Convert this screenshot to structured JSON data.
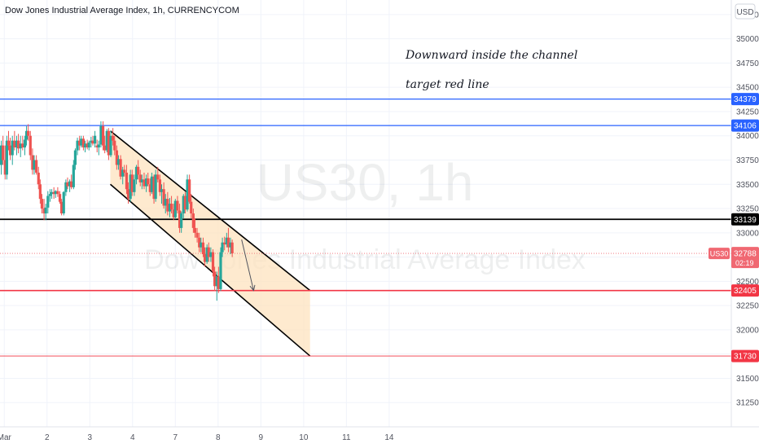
{
  "header": {
    "title": "Dow Jones Industrial Average Index, 1h, CURRENCYCOM",
    "currency": "USD"
  },
  "watermark": {
    "symbol": "US30, 1h",
    "name": "Dow Jones Industrial Average Index"
  },
  "annotations": {
    "line1": "Downward inside the channel",
    "line2": "target red line"
  },
  "colors": {
    "up": "#26a69a",
    "down": "#ef5350",
    "blue_line": "#2962ff",
    "black_line": "#000000",
    "red_line": "#f23645",
    "channel_fill": "#fde3bf",
    "last_price": "#f06872"
  },
  "chart_data": {
    "type": "candlestick",
    "title": "Dow Jones Industrial Average Index, 1h, CURRENCYCOM",
    "symbol": "US30",
    "interval": "1h",
    "y_axis": {
      "ylim": [
        31000,
        35400
      ],
      "ticks": [
        31250,
        31500,
        31750,
        32000,
        32250,
        32500,
        32750,
        33000,
        33250,
        33500,
        33750,
        34000,
        34250,
        34500,
        34750,
        35000,
        35250
      ]
    },
    "x_axis": {
      "xlim": [
        -0.1,
        17.0
      ],
      "ticks": [
        {
          "label": "Mar",
          "x": 0
        },
        {
          "label": "2",
          "x": 1
        },
        {
          "label": "3",
          "x": 2
        },
        {
          "label": "4",
          "x": 3
        },
        {
          "label": "7",
          "x": 4
        },
        {
          "label": "8",
          "x": 5
        },
        {
          "label": "9",
          "x": 6
        },
        {
          "label": "10",
          "x": 7
        },
        {
          "label": "11",
          "x": 8
        },
        {
          "label": "14",
          "x": 9
        }
      ]
    },
    "candles": [
      {
        "x": -0.07,
        "o": 33700,
        "h": 33950,
        "l": 33600,
        "c": 33900
      },
      {
        "x": -0.03,
        "o": 33900,
        "h": 34000,
        "l": 33700,
        "c": 33750
      },
      {
        "x": 0.02,
        "o": 33750,
        "h": 33900,
        "l": 33550,
        "c": 33600
      },
      {
        "x": 0.06,
        "o": 33600,
        "h": 34000,
        "l": 33550,
        "c": 33950
      },
      {
        "x": 0.1,
        "o": 33950,
        "h": 34050,
        "l": 33850,
        "c": 33900
      },
      {
        "x": 0.14,
        "o": 33900,
        "h": 33980,
        "l": 33750,
        "c": 33800
      },
      {
        "x": 0.19,
        "o": 33800,
        "h": 34000,
        "l": 33700,
        "c": 33950
      },
      {
        "x": 0.24,
        "o": 33950,
        "h": 34050,
        "l": 33850,
        "c": 33880
      },
      {
        "x": 0.29,
        "o": 33880,
        "h": 34000,
        "l": 33800,
        "c": 33950
      },
      {
        "x": 0.33,
        "o": 33950,
        "h": 34020,
        "l": 33820,
        "c": 33870
      },
      {
        "x": 0.38,
        "o": 33870,
        "h": 34000,
        "l": 33780,
        "c": 33920
      },
      {
        "x": 0.43,
        "o": 33920,
        "h": 34000,
        "l": 33850,
        "c": 33880
      },
      {
        "x": 0.48,
        "o": 33880,
        "h": 34000,
        "l": 33800,
        "c": 33960
      },
      {
        "x": 0.52,
        "o": 33960,
        "h": 34100,
        "l": 33900,
        "c": 34050
      },
      {
        "x": 0.56,
        "o": 34050,
        "h": 34120,
        "l": 33950,
        "c": 34000
      },
      {
        "x": 0.61,
        "o": 34000,
        "h": 34050,
        "l": 33750,
        "c": 33800
      },
      {
        "x": 0.66,
        "o": 33800,
        "h": 33870,
        "l": 33600,
        "c": 33650
      },
      {
        "x": 0.7,
        "o": 33650,
        "h": 33800,
        "l": 33600,
        "c": 33750
      },
      {
        "x": 0.75,
        "o": 33750,
        "h": 33800,
        "l": 33600,
        "c": 33620
      },
      {
        "x": 0.8,
        "o": 33620,
        "h": 33680,
        "l": 33450,
        "c": 33500
      },
      {
        "x": 0.84,
        "o": 33500,
        "h": 33550,
        "l": 33300,
        "c": 33350
      },
      {
        "x": 0.88,
        "o": 33350,
        "h": 33400,
        "l": 33200,
        "c": 33250
      },
      {
        "x": 0.93,
        "o": 33250,
        "h": 33350,
        "l": 33130,
        "c": 33200
      },
      {
        "x": 0.97,
        "o": 33200,
        "h": 33300,
        "l": 33130,
        "c": 33260
      },
      {
        "x": 1.02,
        "o": 33260,
        "h": 33430,
        "l": 33200,
        "c": 33380
      },
      {
        "x": 1.07,
        "o": 33380,
        "h": 33450,
        "l": 33320,
        "c": 33400
      },
      {
        "x": 1.11,
        "o": 33400,
        "h": 33450,
        "l": 33350,
        "c": 33420
      },
      {
        "x": 1.16,
        "o": 33420,
        "h": 33470,
        "l": 33350,
        "c": 33400
      },
      {
        "x": 1.2,
        "o": 33400,
        "h": 33440,
        "l": 33360,
        "c": 33430
      },
      {
        "x": 1.25,
        "o": 33430,
        "h": 33470,
        "l": 33370,
        "c": 33400
      },
      {
        "x": 1.3,
        "o": 33400,
        "h": 33430,
        "l": 33300,
        "c": 33320
      },
      {
        "x": 1.34,
        "o": 33320,
        "h": 33350,
        "l": 33180,
        "c": 33200
      },
      {
        "x": 1.39,
        "o": 33200,
        "h": 33430,
        "l": 33180,
        "c": 33420
      },
      {
        "x": 1.44,
        "o": 33420,
        "h": 33550,
        "l": 33380,
        "c": 33520
      },
      {
        "x": 1.48,
        "o": 33520,
        "h": 33570,
        "l": 33450,
        "c": 33480
      },
      {
        "x": 1.53,
        "o": 33480,
        "h": 33550,
        "l": 33420,
        "c": 33530
      },
      {
        "x": 1.57,
        "o": 33530,
        "h": 33600,
        "l": 33450,
        "c": 33470
      },
      {
        "x": 1.62,
        "o": 33470,
        "h": 33750,
        "l": 33450,
        "c": 33700
      },
      {
        "x": 1.66,
        "o": 33700,
        "h": 33870,
        "l": 33650,
        "c": 33850
      },
      {
        "x": 1.71,
        "o": 33850,
        "h": 33980,
        "l": 33800,
        "c": 33950
      },
      {
        "x": 1.76,
        "o": 33950,
        "h": 34000,
        "l": 33850,
        "c": 33900
      },
      {
        "x": 1.8,
        "o": 33900,
        "h": 34000,
        "l": 33880,
        "c": 33970
      },
      {
        "x": 1.85,
        "o": 33970,
        "h": 34000,
        "l": 33850,
        "c": 33880
      },
      {
        "x": 1.89,
        "o": 33880,
        "h": 33950,
        "l": 33830,
        "c": 33920
      },
      {
        "x": 1.94,
        "o": 33920,
        "h": 33960,
        "l": 33860,
        "c": 33880
      },
      {
        "x": 1.98,
        "o": 33880,
        "h": 33950,
        "l": 33850,
        "c": 33930
      },
      {
        "x": 2.03,
        "o": 33930,
        "h": 33990,
        "l": 33880,
        "c": 33950
      },
      {
        "x": 2.07,
        "o": 33950,
        "h": 34000,
        "l": 33900,
        "c": 33920
      },
      {
        "x": 2.12,
        "o": 33920,
        "h": 34050,
        "l": 33880,
        "c": 34000
      },
      {
        "x": 2.17,
        "o": 33900,
        "h": 33960,
        "l": 33830,
        "c": 33880
      },
      {
        "x": 2.21,
        "o": 33880,
        "h": 33950,
        "l": 33800,
        "c": 33910
      },
      {
        "x": 2.26,
        "o": 33910,
        "h": 34150,
        "l": 33880,
        "c": 34100
      },
      {
        "x": 2.31,
        "o": 34100,
        "h": 34150,
        "l": 33850,
        "c": 33900
      },
      {
        "x": 2.35,
        "o": 33900,
        "h": 34000,
        "l": 33820,
        "c": 33850
      },
      {
        "x": 2.4,
        "o": 33850,
        "h": 34070,
        "l": 33830,
        "c": 34050
      },
      {
        "x": 2.44,
        "o": 34050,
        "h": 34080,
        "l": 33750,
        "c": 33800
      },
      {
        "x": 2.49,
        "o": 33800,
        "h": 34050,
        "l": 33780,
        "c": 34000
      },
      {
        "x": 2.54,
        "o": 34000,
        "h": 34080,
        "l": 33900,
        "c": 33950
      },
      {
        "x": 2.58,
        "o": 33950,
        "h": 34000,
        "l": 33800,
        "c": 33850
      },
      {
        "x": 2.63,
        "o": 33850,
        "h": 33900,
        "l": 33650,
        "c": 33700
      },
      {
        "x": 2.67,
        "o": 33700,
        "h": 33800,
        "l": 33650,
        "c": 33760
      },
      {
        "x": 2.72,
        "o": 33760,
        "h": 33800,
        "l": 33550,
        "c": 33580
      },
      {
        "x": 2.77,
        "o": 33580,
        "h": 33680,
        "l": 33500,
        "c": 33650
      },
      {
        "x": 2.81,
        "o": 33650,
        "h": 33700,
        "l": 33580,
        "c": 33620
      },
      {
        "x": 2.86,
        "o": 33620,
        "h": 33700,
        "l": 33400,
        "c": 33450
      },
      {
        "x": 2.9,
        "o": 33450,
        "h": 33520,
        "l": 33300,
        "c": 33350
      },
      {
        "x": 2.95,
        "o": 33350,
        "h": 33650,
        "l": 33320,
        "c": 33600
      },
      {
        "x": 2.99,
        "o": 33600,
        "h": 33650,
        "l": 33380,
        "c": 33420
      },
      {
        "x": 3.04,
        "o": 33420,
        "h": 33600,
        "l": 33380,
        "c": 33550
      },
      {
        "x": 3.09,
        "o": 33550,
        "h": 33700,
        "l": 33500,
        "c": 33680
      },
      {
        "x": 3.13,
        "o": 33680,
        "h": 33750,
        "l": 33550,
        "c": 33600
      },
      {
        "x": 3.18,
        "o": 33600,
        "h": 33650,
        "l": 33480,
        "c": 33520
      },
      {
        "x": 3.22,
        "o": 33520,
        "h": 33600,
        "l": 33450,
        "c": 33550
      },
      {
        "x": 3.27,
        "o": 33550,
        "h": 33620,
        "l": 33450,
        "c": 33480
      },
      {
        "x": 3.32,
        "o": 33480,
        "h": 33600,
        "l": 33420,
        "c": 33560
      },
      {
        "x": 3.36,
        "o": 33560,
        "h": 33620,
        "l": 33480,
        "c": 33500
      },
      {
        "x": 3.41,
        "o": 33500,
        "h": 33560,
        "l": 33380,
        "c": 33420
      },
      {
        "x": 3.45,
        "o": 33420,
        "h": 33620,
        "l": 33400,
        "c": 33580
      },
      {
        "x": 3.5,
        "o": 33580,
        "h": 33600,
        "l": 33300,
        "c": 33350
      },
      {
        "x": 3.54,
        "o": 33350,
        "h": 33650,
        "l": 33320,
        "c": 33600
      },
      {
        "x": 3.59,
        "o": 33600,
        "h": 33680,
        "l": 33520,
        "c": 33550
      },
      {
        "x": 3.64,
        "o": 33550,
        "h": 33600,
        "l": 33380,
        "c": 33420
      },
      {
        "x": 3.68,
        "o": 33420,
        "h": 33500,
        "l": 33300,
        "c": 33450
      },
      {
        "x": 3.73,
        "o": 33450,
        "h": 33520,
        "l": 33250,
        "c": 33280
      },
      {
        "x": 3.77,
        "o": 33280,
        "h": 33400,
        "l": 33200,
        "c": 33350
      },
      {
        "x": 3.82,
        "o": 33350,
        "h": 33420,
        "l": 33180,
        "c": 33220
      },
      {
        "x": 3.87,
        "o": 33220,
        "h": 33360,
        "l": 33160,
        "c": 33300
      },
      {
        "x": 3.91,
        "o": 33300,
        "h": 33380,
        "l": 33200,
        "c": 33240
      },
      {
        "x": 3.96,
        "o": 33240,
        "h": 33300,
        "l": 33130,
        "c": 33160
      },
      {
        "x": 4.0,
        "o": 33160,
        "h": 33350,
        "l": 33140,
        "c": 33330
      },
      {
        "x": 4.05,
        "o": 33330,
        "h": 33380,
        "l": 33200,
        "c": 33230
      },
      {
        "x": 4.1,
        "o": 33230,
        "h": 33300,
        "l": 33000,
        "c": 33050
      },
      {
        "x": 4.14,
        "o": 33050,
        "h": 33220,
        "l": 33000,
        "c": 33200
      },
      {
        "x": 4.19,
        "o": 33200,
        "h": 33400,
        "l": 33150,
        "c": 33380
      },
      {
        "x": 4.23,
        "o": 33380,
        "h": 33420,
        "l": 33200,
        "c": 33240
      },
      {
        "x": 4.28,
        "o": 33240,
        "h": 33600,
        "l": 33220,
        "c": 33550
      },
      {
        "x": 4.33,
        "o": 33550,
        "h": 33600,
        "l": 33300,
        "c": 33320
      },
      {
        "x": 4.37,
        "o": 33320,
        "h": 33400,
        "l": 33150,
        "c": 33200
      },
      {
        "x": 4.42,
        "o": 33200,
        "h": 33250,
        "l": 33000,
        "c": 33050
      },
      {
        "x": 4.46,
        "o": 33050,
        "h": 33150,
        "l": 32950,
        "c": 33000
      },
      {
        "x": 4.51,
        "o": 33000,
        "h": 33050,
        "l": 32900,
        "c": 32950
      },
      {
        "x": 4.56,
        "o": 32950,
        "h": 33000,
        "l": 32800,
        "c": 32850
      },
      {
        "x": 4.6,
        "o": 32850,
        "h": 32950,
        "l": 32800,
        "c": 32900
      },
      {
        "x": 4.65,
        "o": 32900,
        "h": 32950,
        "l": 32750,
        "c": 32780
      },
      {
        "x": 4.69,
        "o": 32780,
        "h": 32850,
        "l": 32650,
        "c": 32700
      },
      {
        "x": 4.74,
        "o": 32700,
        "h": 32880,
        "l": 32680,
        "c": 32850
      },
      {
        "x": 4.78,
        "o": 32850,
        "h": 32900,
        "l": 32700,
        "c": 32750
      },
      {
        "x": 4.83,
        "o": 32750,
        "h": 32850,
        "l": 32700,
        "c": 32800
      },
      {
        "x": 4.88,
        "o": 32800,
        "h": 32830,
        "l": 32550,
        "c": 32600
      },
      {
        "x": 4.92,
        "o": 32600,
        "h": 32650,
        "l": 32400,
        "c": 32450
      },
      {
        "x": 4.97,
        "o": 32450,
        "h": 32600,
        "l": 32300,
        "c": 32550
      },
      {
        "x": 5.01,
        "o": 32550,
        "h": 32650,
        "l": 32380,
        "c": 32420
      },
      {
        "x": 5.06,
        "o": 32420,
        "h": 32850,
        "l": 32400,
        "c": 32800
      },
      {
        "x": 5.1,
        "o": 32800,
        "h": 32950,
        "l": 32750,
        "c": 32900
      },
      {
        "x": 5.15,
        "o": 32900,
        "h": 32960,
        "l": 32820,
        "c": 32880
      },
      {
        "x": 5.2,
        "o": 32880,
        "h": 33000,
        "l": 32850,
        "c": 32950
      },
      {
        "x": 5.24,
        "o": 32950,
        "h": 33050,
        "l": 32800,
        "c": 32850
      },
      {
        "x": 5.29,
        "o": 32850,
        "h": 32950,
        "l": 32780,
        "c": 32900
      },
      {
        "x": 5.33,
        "o": 32900,
        "h": 32930,
        "l": 32750,
        "c": 32788
      }
    ],
    "horizontal_lines": [
      {
        "value": 34379,
        "label": "34379",
        "color": "blue"
      },
      {
        "value": 34106,
        "label": "34106",
        "color": "blue"
      },
      {
        "value": 33139,
        "label": "33139",
        "color": "black"
      },
      {
        "value": 32405,
        "label": "32405",
        "color": "red"
      },
      {
        "value": 31730,
        "label": "31730",
        "color": "red_thin"
      }
    ],
    "last_price": {
      "symbol": "US30",
      "value": 32788,
      "label": "32788",
      "countdown": "02:19"
    },
    "channel": {
      "upper": [
        [
          2.48,
          34050
        ],
        [
          7.15,
          32405
        ]
      ],
      "lower": [
        [
          2.48,
          33500
        ],
        [
          7.15,
          31730
        ]
      ],
      "shade_end_x": 7.15
    },
    "arrow": {
      "from": [
        5.55,
        32930
      ],
      "to": [
        5.83,
        32405
      ]
    }
  }
}
